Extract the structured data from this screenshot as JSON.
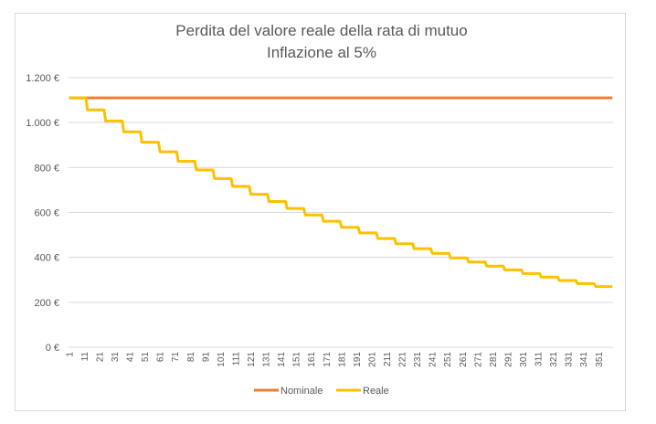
{
  "chart_data": {
    "type": "line",
    "title": "Perdita del valore reale della rata di mutuo",
    "subtitle": "Inflazione al 5%",
    "xlabel": "",
    "ylabel": "",
    "x_start": 1,
    "x_end": 360,
    "x_tick_labels": [
      "1",
      "11",
      "21",
      "31",
      "41",
      "51",
      "61",
      "71",
      "81",
      "91",
      "101",
      "111",
      "121",
      "131",
      "141",
      "151",
      "161",
      "171",
      "181",
      "191",
      "201",
      "211",
      "221",
      "231",
      "241",
      "251",
      "261",
      "271",
      "281",
      "291",
      "301",
      "311",
      "321",
      "331",
      "341",
      "351"
    ],
    "ylim": [
      0,
      1200
    ],
    "y_ticks": [
      0,
      200,
      400,
      600,
      800,
      1000,
      1200
    ],
    "y_tick_labels": [
      "0 €",
      "200 €",
      "400 €",
      "600 €",
      "800 €",
      "1.000 €",
      "1.200 €"
    ],
    "grid": true,
    "legend_placement": "bottom",
    "series": [
      {
        "name": "Nominale",
        "color": "#ED7D31",
        "constant_value": 1110
      },
      {
        "name": "Reale",
        "color": "#FFC000",
        "step_every": 12,
        "yearly_values": [
          1110,
          1057,
          1007,
          959,
          913,
          870,
          828,
          789,
          751,
          716,
          681,
          649,
          618,
          589,
          561,
          534,
          509,
          484,
          461,
          439,
          418,
          398,
          379,
          361,
          344,
          328,
          312,
          297,
          283,
          270
        ]
      }
    ]
  }
}
